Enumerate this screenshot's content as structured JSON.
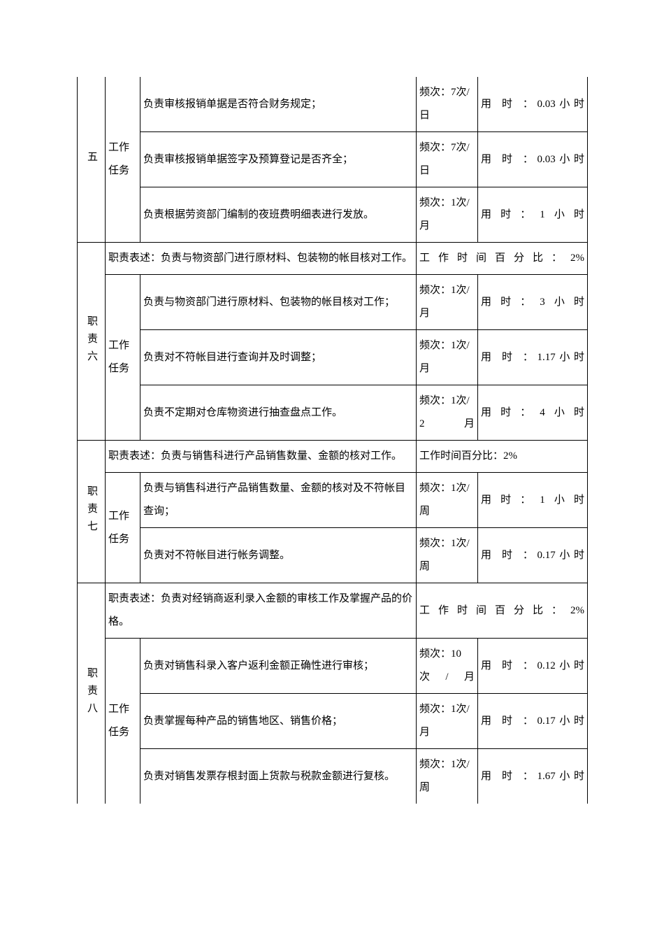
{
  "duties": {
    "five": {
      "label": "五",
      "taskGroupLabel": "工作任务",
      "tasks": [
        {
          "desc": "负责审核报销单据是否符合财务规定；",
          "freq": "频次：7次/ 日",
          "time": "用 时 ：0.03小时"
        },
        {
          "desc": "负责审核报销单据签字及预算登记是否齐全；",
          "freq": "频次：7次/ 日",
          "time": "用 时 ：0.03小时"
        },
        {
          "desc": "负责根据劳资部门编制的夜班费明细表进行发放。",
          "freq": "频次：1次/ 月",
          "time": "用时：1小时"
        }
      ]
    },
    "six": {
      "label": "职责六",
      "statement": "职责表述：负责与物资部门进行原材料、包装物的帐目核对工作。",
      "percent": "工作时间百分比：2%",
      "taskGroupLabel": "工作任务",
      "tasks": [
        {
          "desc": "负责与物资部门进行原材料、包装物的帐目核对工作；",
          "freq": "频次：1次/月",
          "time": "用时：3小时"
        },
        {
          "desc": "负责对不符帐目进行查询并及时调整；",
          "freq": "频次：1次/月",
          "time": "用 时 ：1.17小时"
        },
        {
          "desc": "负责不定期对仓库物资进行抽查盘点工作。",
          "freq": "频次：1次/ 2月",
          "time": "用时：4小时"
        }
      ]
    },
    "seven": {
      "label": "职责七",
      "statement": "职责表述：负责与销售科进行产品销售数量、金额的核对工作。",
      "percent": "工作时间百分比：2%",
      "taskGroupLabel": "工作任务",
      "tasks": [
        {
          "desc": "负责与销售科进行产品销售数量、金额的核对及不符帐目查询；",
          "freq": "频次：1次/周",
          "time": "用时：1小时"
        },
        {
          "desc": "负责对不符帐目进行帐务调整。",
          "freq": "频次：1次/ 周",
          "time": "用 时 ：0.17小时"
        }
      ]
    },
    "eight": {
      "label": "职责八",
      "statement": "职责表述：负责对经销商返利录入金额的审核工作及掌握产品的价格。",
      "percent": "工作时间百分比：2%",
      "taskGroupLabel": "工作任务",
      "tasks": [
        {
          "desc": "负责对销售科录入客户返利金额正确性进行审核；",
          "freq": "频次：10次/月",
          "time": "用 时 ：0.12小时"
        },
        {
          "desc": "负责掌握每种产品的销售地区、销售价格；",
          "freq": "频次：1次/月",
          "time": "用 时 ：0.17小时"
        },
        {
          "desc": "负责对销售发票存根封面上货款与税款金额进行复核。",
          "freq": "频次：1次/周",
          "time": "用 时 ：1.67小时"
        }
      ]
    }
  }
}
